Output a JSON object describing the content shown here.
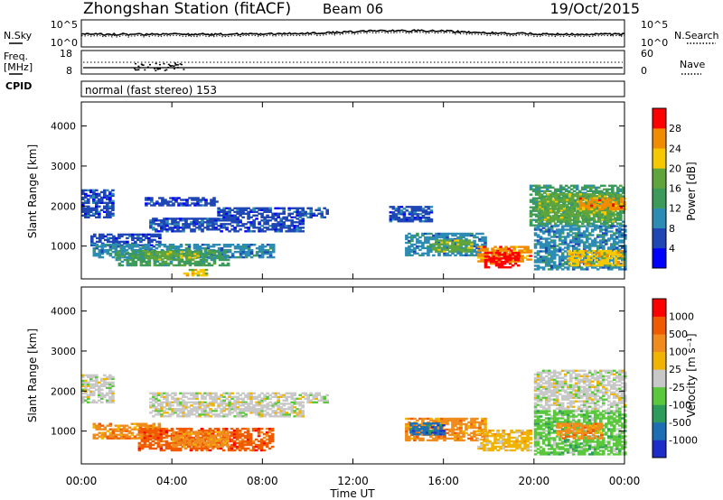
{
  "header": {
    "station": "Zhongshan Station (fitACF)",
    "beam": "Beam 06",
    "date": "19/Oct/2015"
  },
  "top_panel": {
    "left_label": "N.Sky",
    "right_label": "N.Search",
    "left_ticks": [
      "10^5",
      "10^0"
    ],
    "right_ticks": [
      "10^5",
      "10^0"
    ]
  },
  "freq_panel": {
    "left_label_1": "Freq.",
    "left_label_2": "[MHz]",
    "right_label": "Nave",
    "left_ticks": [
      "18",
      "8"
    ],
    "right_ticks": [
      "60",
      "0"
    ]
  },
  "cpid": {
    "label": "CPID",
    "mode": "normal (fast stereo) 153"
  },
  "colors": {
    "power_scale": [
      "#0000ff",
      "#1e46b4",
      "#2d8cb4",
      "#3c9b5a",
      "#5fa53c",
      "#f5c800",
      "#f08c00",
      "#ff0000"
    ],
    "velocity_scale": [
      "#1e2dc8",
      "#1e6eb4",
      "#2d9b5a",
      "#5ac83c",
      "#c8c8c8",
      "#f0b400",
      "#f08c1e",
      "#f05a00",
      "#ff0000"
    ]
  },
  "chart_data": [
    {
      "type": "heatmap",
      "title": "",
      "xlabel": "Time UT",
      "ylabel": "Slant Range [km]",
      "x_ticks": [
        "00:00",
        "04:00",
        "08:00",
        "12:00",
        "16:00",
        "20:00",
        "00:00"
      ],
      "y_ticks": [
        "1000",
        "2000",
        "3000",
        "4000"
      ],
      "ylim": [
        180,
        4600
      ],
      "colorbar_label": "Power [dB]",
      "colorbar_ticks": [
        "4",
        "8",
        "12",
        "16",
        "20",
        "24",
        "28"
      ],
      "regions": [
        {
          "t0": 0.0,
          "t1": 1.4,
          "r0": 1700,
          "r1": 2400,
          "level": 1
        },
        {
          "t0": 0.4,
          "t1": 3.5,
          "r0": 1000,
          "r1": 1300,
          "level": 1
        },
        {
          "t0": 2.8,
          "t1": 6.0,
          "r0": 2000,
          "r1": 2200,
          "level": 1
        },
        {
          "t0": 3.0,
          "t1": 9.8,
          "r0": 1350,
          "r1": 1700,
          "level": 1
        },
        {
          "t0": 6.0,
          "t1": 10.8,
          "r0": 1700,
          "r1": 1950,
          "level": 1
        },
        {
          "t0": 0.5,
          "t1": 8.5,
          "r0": 700,
          "r1": 1050,
          "level": 2
        },
        {
          "t0": 1.5,
          "t1": 6.5,
          "r0": 500,
          "r1": 900,
          "level": 3
        },
        {
          "t0": 2.8,
          "t1": 5.2,
          "r0": 650,
          "r1": 850,
          "level": 4
        },
        {
          "t0": 4.5,
          "t1": 5.5,
          "r0": 250,
          "r1": 400,
          "level": 5
        },
        {
          "t0": 13.6,
          "t1": 15.4,
          "r0": 1600,
          "r1": 2000,
          "level": 1
        },
        {
          "t0": 14.3,
          "t1": 17.8,
          "r0": 750,
          "r1": 1300,
          "level": 2
        },
        {
          "t0": 15.5,
          "t1": 17.3,
          "r0": 850,
          "r1": 1150,
          "level": 4
        },
        {
          "t0": 17.5,
          "t1": 19.8,
          "r0": 600,
          "r1": 1000,
          "level": 6
        },
        {
          "t0": 17.8,
          "t1": 19.3,
          "r0": 450,
          "r1": 850,
          "level": 7
        },
        {
          "t0": 19.8,
          "t1": 24.0,
          "r0": 1500,
          "r1": 2500,
          "level": 3
        },
        {
          "t0": 20.2,
          "t1": 23.5,
          "r0": 1600,
          "r1": 2300,
          "level": 4
        },
        {
          "t0": 20.0,
          "t1": 24.0,
          "r0": 400,
          "r1": 1500,
          "level": 2
        },
        {
          "t0": 21.5,
          "t1": 24.0,
          "r0": 500,
          "r1": 900,
          "level": 5
        },
        {
          "t0": 22.0,
          "t1": 24.0,
          "r0": 1900,
          "r1": 2200,
          "level": 6
        }
      ]
    },
    {
      "type": "heatmap",
      "title": "",
      "xlabel": "Time UT",
      "ylabel": "Slant Range [km]",
      "x_ticks": [
        "00:00",
        "04:00",
        "08:00",
        "12:00",
        "16:00",
        "20:00",
        "00:00"
      ],
      "y_ticks": [
        "1000",
        "2000",
        "3000",
        "4000"
      ],
      "ylim": [
        180,
        4600
      ],
      "colorbar_label": "Velocity [m s⁻¹]",
      "colorbar_ticks": [
        "1000",
        "500",
        "100",
        "25",
        "-25",
        "-100",
        "-500",
        "-1000"
      ],
      "regions": [
        {
          "t0": 0.0,
          "t1": 1.4,
          "r0": 1700,
          "r1": 2400,
          "level": 4
        },
        {
          "t0": 3.0,
          "t1": 10.8,
          "r0": 1700,
          "r1": 1950,
          "level": 4
        },
        {
          "t0": 3.0,
          "t1": 9.8,
          "r0": 1350,
          "r1": 1700,
          "level": 4
        },
        {
          "t0": 0.5,
          "t1": 3.5,
          "r0": 800,
          "r1": 1200,
          "level": 6
        },
        {
          "t0": 2.5,
          "t1": 8.5,
          "r0": 500,
          "r1": 1050,
          "level": 7
        },
        {
          "t0": 4.0,
          "t1": 6.5,
          "r0": 600,
          "r1": 1000,
          "level": 6
        },
        {
          "t0": 14.3,
          "t1": 17.8,
          "r0": 750,
          "r1": 1300,
          "level": 6
        },
        {
          "t0": 14.5,
          "t1": 16.0,
          "r0": 900,
          "r1": 1200,
          "level": 1
        },
        {
          "t0": 17.5,
          "t1": 19.8,
          "r0": 500,
          "r1": 1000,
          "level": 5
        },
        {
          "t0": 20.0,
          "t1": 24.0,
          "r0": 1500,
          "r1": 2500,
          "level": 4
        },
        {
          "t0": 20.0,
          "t1": 24.0,
          "r0": 400,
          "r1": 1500,
          "level": 3
        },
        {
          "t0": 21.0,
          "t1": 23.0,
          "r0": 800,
          "r1": 1200,
          "level": 6
        }
      ]
    }
  ]
}
